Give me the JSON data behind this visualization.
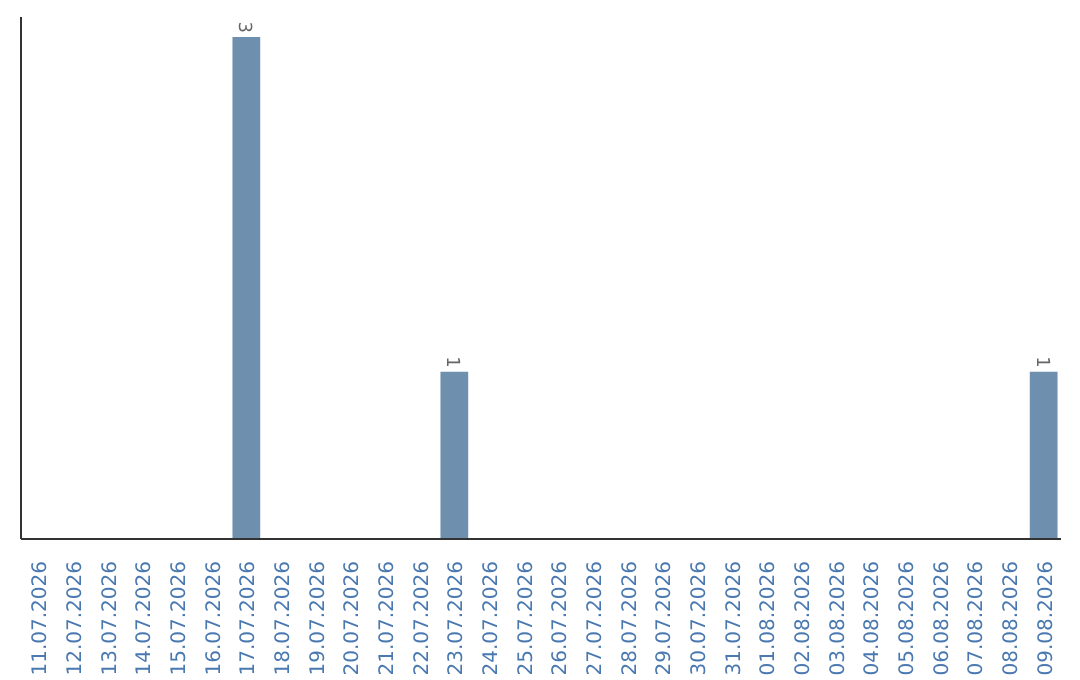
{
  "chart_data": {
    "type": "bar",
    "categories": [
      "11.07.2026",
      "12.07.2026",
      "13.07.2026",
      "14.07.2026",
      "15.07.2026",
      "16.07.2026",
      "17.07.2026",
      "18.07.2026",
      "19.07.2026",
      "20.07.2026",
      "21.07.2026",
      "22.07.2026",
      "23.07.2026",
      "24.07.2026",
      "25.07.2026",
      "26.07.2026",
      "27.07.2026",
      "28.07.2026",
      "29.07.2026",
      "30.07.2026",
      "31.07.2026",
      "01.08.2026",
      "02.08.2026",
      "03.08.2026",
      "04.08.2026",
      "05.08.2026",
      "06.08.2026",
      "07.08.2026",
      "08.08.2026",
      "09.08.2026"
    ],
    "values": [
      0,
      0,
      0,
      0,
      0,
      0,
      3,
      0,
      0,
      0,
      0,
      0,
      1,
      0,
      0,
      0,
      0,
      0,
      0,
      0,
      0,
      0,
      0,
      0,
      0,
      0,
      0,
      0,
      0,
      1
    ],
    "value_labels": [
      null,
      null,
      null,
      null,
      null,
      null,
      "3",
      null,
      null,
      null,
      null,
      null,
      "1",
      null,
      null,
      null,
      null,
      null,
      null,
      null,
      null,
      null,
      null,
      null,
      null,
      null,
      null,
      null,
      null,
      "1"
    ],
    "color": "#6f8fae",
    "grid": false,
    "tick_labels": "x"
  }
}
